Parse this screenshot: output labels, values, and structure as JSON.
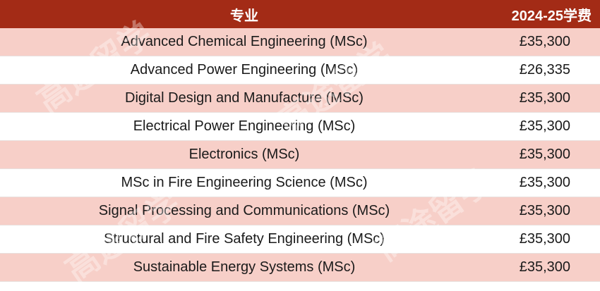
{
  "table": {
    "header": {
      "program": "专业",
      "fee": "2024-25学费"
    },
    "rows": [
      {
        "program": "Advanced Chemical Engineering (MSc)",
        "fee": "£35,300"
      },
      {
        "program": "Advanced Power Engineering (MSc)",
        "fee": "£26,335"
      },
      {
        "program": "Digital Design and Manufacture (MSc)",
        "fee": "£35,300"
      },
      {
        "program": "Electrical Power Engineering (MSc)",
        "fee": "£35,300"
      },
      {
        "program": "Electronics (MSc)",
        "fee": "£35,300"
      },
      {
        "program": "MSc in Fire Engineering Science (MSc)",
        "fee": "£35,300"
      },
      {
        "program": "Signal Processing and Communications (MSc)",
        "fee": "£35,300"
      },
      {
        "program": "Structural and Fire Safety Engineering (MSc)",
        "fee": "£35,300"
      },
      {
        "program": "Sustainable Energy Systems (MSc)",
        "fee": "£35,300"
      }
    ]
  },
  "watermark": "高途留学",
  "colors": {
    "header_bg": "#a32b16",
    "odd_row_bg": "#f7cfc8",
    "even_row_bg": "#ffffff"
  }
}
